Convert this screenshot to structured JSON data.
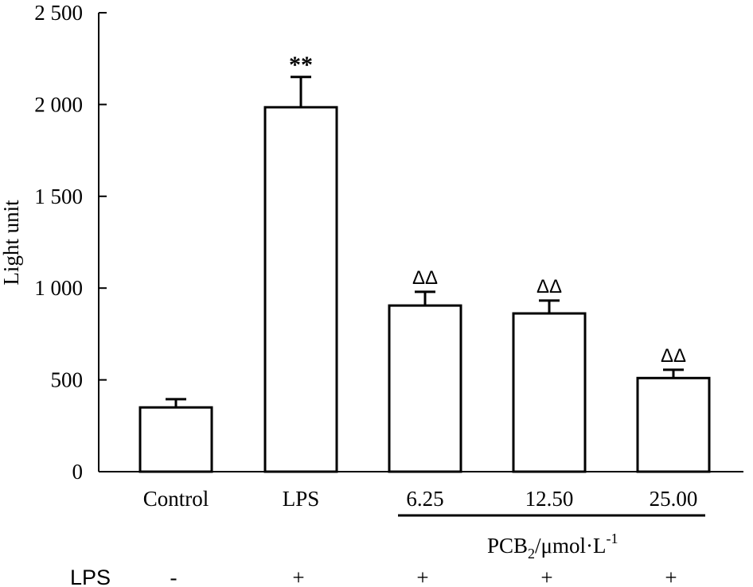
{
  "chart_data": {
    "type": "bar",
    "title": "",
    "ylabel": "Light unit",
    "xlabel": "",
    "ylim": [
      0,
      2500
    ],
    "yticks": [
      0,
      500,
      1000,
      1500,
      2000,
      2500
    ],
    "ytick_labels": [
      "0",
      "500",
      "1 000",
      "1 500",
      "2 000",
      "2 500"
    ],
    "grid": false,
    "categories": [
      "Control",
      "LPS",
      "6.25",
      "12.50",
      "25.00"
    ],
    "values": [
      350,
      1985,
      905,
      862,
      510
    ],
    "errors": [
      45,
      165,
      75,
      70,
      45
    ],
    "annotations": [
      "",
      "**",
      "ΔΔ",
      "ΔΔ",
      "ΔΔ"
    ],
    "group_label": {
      "prefix": "PCB",
      "subscript": "2",
      "middle": "/μmol·L",
      "superscript": "-1",
      "categories_start_index": 2
    },
    "lps_row": {
      "label": "LPS",
      "marks": [
        "-",
        "+",
        "+",
        "+",
        "+"
      ]
    }
  }
}
